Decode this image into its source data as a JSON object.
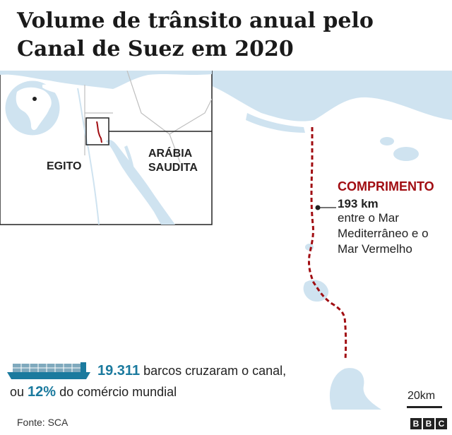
{
  "title": "Volume de trânsito anual pelo Canal de Suez em 2020",
  "inset": {
    "countries": [
      "EGITO",
      "ARÁBIA SAUDITA"
    ],
    "globe_marker_icon": "location-dot-icon"
  },
  "canal": {
    "length_title": "COMPRIMENTO",
    "length_value": "193 km",
    "length_desc": "entre o Mar Mediterrâneo e o Mar Vermelho",
    "route_color": "#a10d12"
  },
  "stats": {
    "ships_count": "19.311",
    "ships_text": "barcos cruzaram o canal,",
    "prefix": "ou",
    "trade_share": "12%",
    "trade_text": "do comércio mundial",
    "ship_icon": "container-ship-icon",
    "highlight_color": "#1b7a9e"
  },
  "scale": {
    "label": "20km"
  },
  "source": "Fonte: SCA",
  "brand": [
    "B",
    "B",
    "C"
  ],
  "colors": {
    "sea": "#cfe3f0",
    "land": "#ffffff",
    "border": "#bfbfbf"
  }
}
